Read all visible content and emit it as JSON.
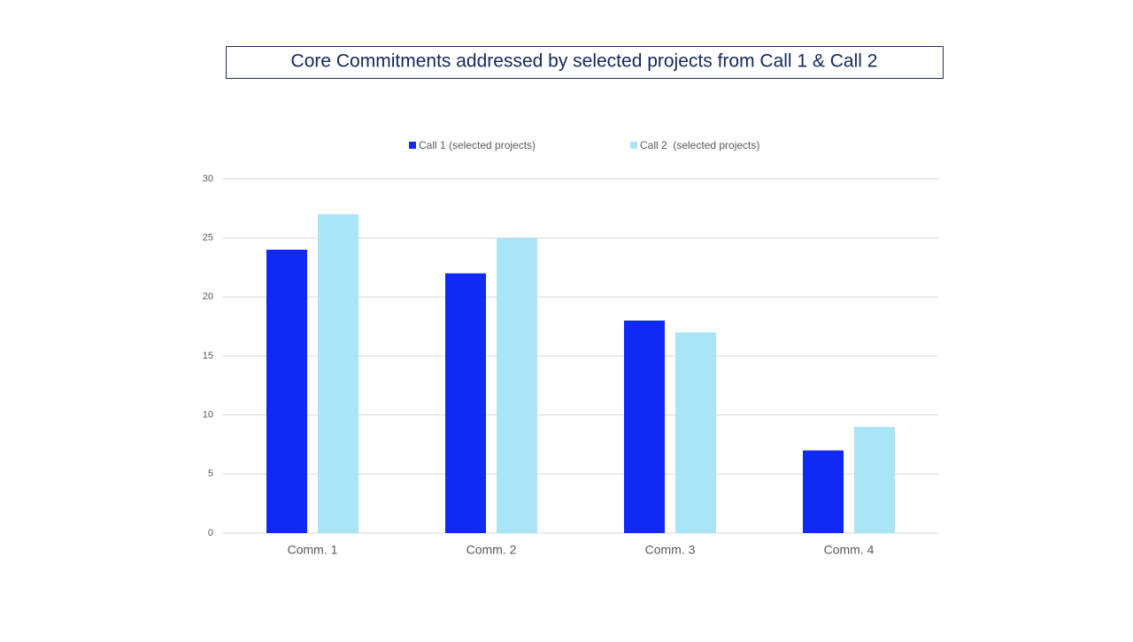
{
  "chart_data": {
    "type": "bar",
    "title": "Core Commitments addressed by selected projects from Call 1 & Call 2",
    "categories": [
      "Comm. 1",
      "Comm. 2",
      "Comm. 3",
      "Comm. 4"
    ],
    "series": [
      {
        "name": "Call 1 (selected projects)",
        "color": "#1029f5",
        "values": [
          24,
          22,
          18,
          7
        ]
      },
      {
        "name": "Call 2  (selected projects)",
        "color": "#a9e5f6",
        "values": [
          27,
          25,
          17,
          9
        ]
      }
    ],
    "ylim": [
      0,
      30
    ],
    "yticks": [
      0,
      5,
      10,
      15,
      20,
      25,
      30
    ],
    "grid": true,
    "legend": "top"
  }
}
